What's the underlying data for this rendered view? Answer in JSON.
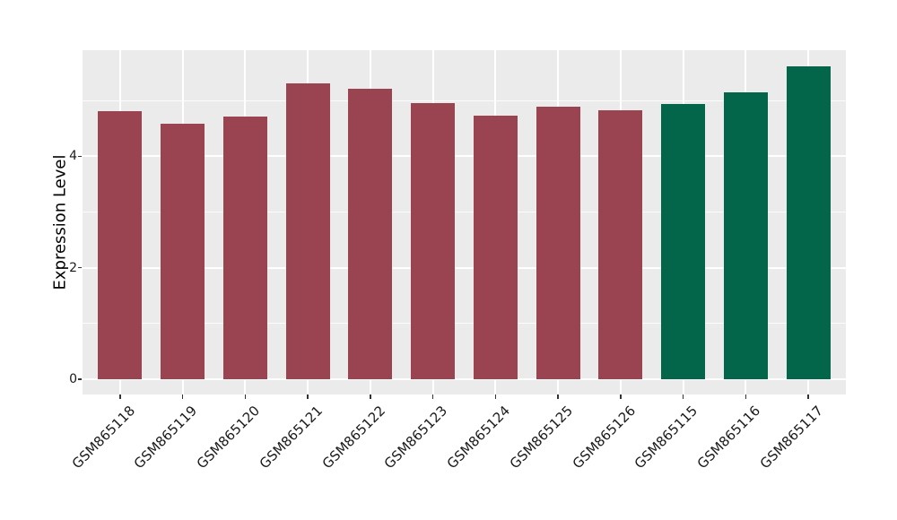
{
  "figure": {
    "background_color": "#FFFFFF",
    "panel_background_color": "#EBEBEB",
    "grid_color": "#FFFFFF",
    "tick_color": "#333333",
    "text_color": "#1A1A1A"
  },
  "chart_data": {
    "type": "bar",
    "title": "",
    "xlabel": "",
    "ylabel": "Expression Level",
    "categories": [
      "GSM865118",
      "GSM865119",
      "GSM865120",
      "GSM865121",
      "GSM865122",
      "GSM865123",
      "GSM865124",
      "GSM865125",
      "GSM865126",
      "GSM865115",
      "GSM865116",
      "GSM865117"
    ],
    "values": [
      4.8,
      4.58,
      4.71,
      5.3,
      5.21,
      4.95,
      4.72,
      4.89,
      4.82,
      4.94,
      5.15,
      5.61
    ],
    "bar_colors": [
      "#9A4451",
      "#9A4451",
      "#9A4451",
      "#9A4451",
      "#9A4451",
      "#9A4451",
      "#9A4451",
      "#9A4451",
      "#9A4451",
      "#03664B",
      "#03664B",
      "#03664B"
    ],
    "color_key": {
      "maroon": "#9A4451",
      "green": "#03664B"
    },
    "yticks": [
      0,
      2,
      4
    ],
    "ytick_labels": [
      "0",
      "2",
      "4"
    ],
    "minor_gridlines": [
      1,
      3,
      5
    ],
    "ylim": [
      -0.28,
      5.9
    ],
    "bar_width_fraction": 0.7,
    "x_tick_rotation_deg": 45,
    "grid": "major horizontal + minor horizontal + major vertical at category centers, white on gray panel",
    "legend_position": "none"
  }
}
